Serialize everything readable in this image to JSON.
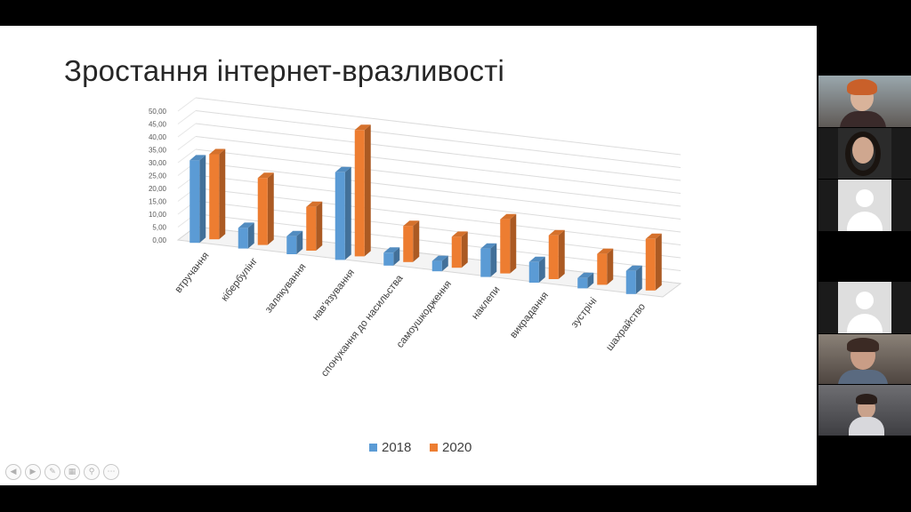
{
  "slide": {
    "title": "Зростання інтернет-вразливості"
  },
  "colors": {
    "series_2018": "#5b9bd5",
    "series_2020": "#ed7d31",
    "background": "#000000"
  },
  "chart_data": {
    "type": "bar",
    "view": "3d-clustered-column",
    "categories": [
      "втручання",
      "кібербулінг",
      "залякування",
      "нав'язування",
      "спонукання до насильства",
      "самоушкодження",
      "наклепи",
      "викрадання",
      "зустрічі",
      "шахрайство"
    ],
    "series": [
      {
        "name": "2018",
        "values": [
          32,
          8,
          7,
          34,
          5,
          4,
          11,
          8,
          4,
          9
        ]
      },
      {
        "name": "2020",
        "values": [
          33,
          26,
          17,
          49,
          14,
          12,
          21,
          17,
          12,
          20
        ]
      }
    ],
    "ylim": [
      0,
      50
    ],
    "ytick_labels": [
      "0,00",
      "5,00",
      "10,00",
      "15,00",
      "20,00",
      "25,00",
      "30,00",
      "35,00",
      "40,00",
      "45,00",
      "50,00"
    ],
    "legend": "bottom-center",
    "grid": true
  },
  "toolbar": {
    "icons": [
      "previous-slide-icon",
      "next-slide-icon",
      "pen-icon",
      "slides-icon",
      "zoom-icon",
      "more-icon"
    ]
  },
  "participants": {
    "tiles": [
      {
        "kind": "video"
      },
      {
        "kind": "video"
      },
      {
        "kind": "avatar"
      },
      {
        "kind": "avatar"
      },
      {
        "kind": "video"
      },
      {
        "kind": "video"
      }
    ]
  }
}
